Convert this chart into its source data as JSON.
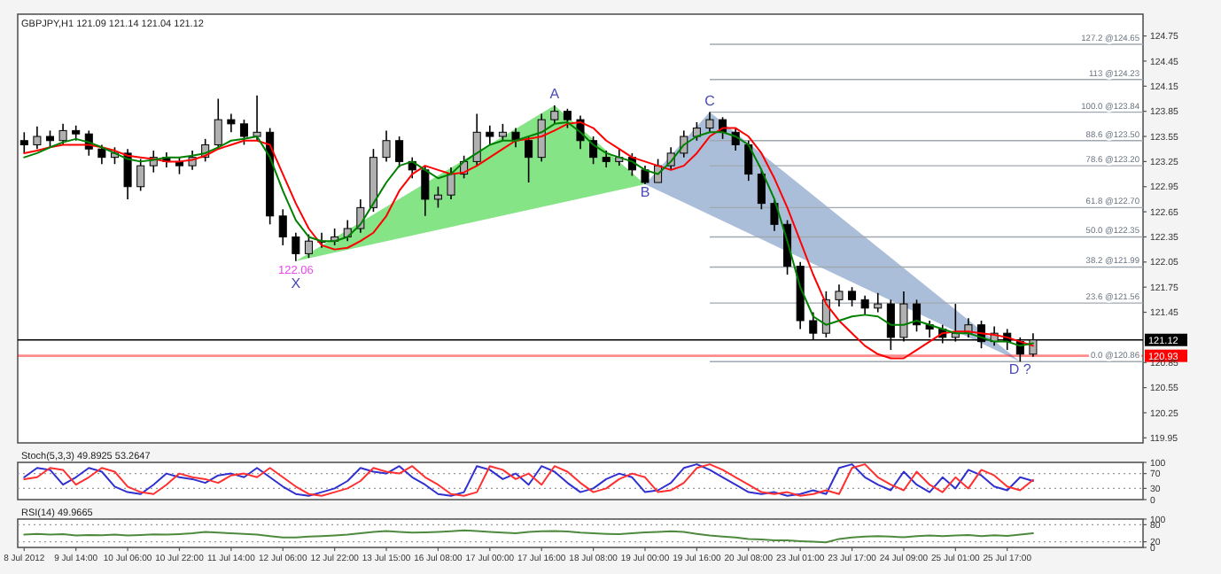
{
  "chart_data": [
    {
      "type": "candlestick",
      "title": "GBPJPY,H1 121.09 121.14 121.04 121.12",
      "color": "#000000",
      "categories": [
        null,
        null,
        null,
        null,
        null,
        null,
        null,
        null,
        null,
        null,
        null,
        null,
        null,
        null,
        null,
        null,
        null,
        null,
        null,
        null,
        null,
        null,
        null,
        null,
        null,
        null,
        null,
        null,
        null,
        null,
        null,
        null,
        null,
        null,
        null,
        null,
        null,
        null,
        null,
        null,
        null,
        null,
        null,
        null,
        null,
        null,
        null,
        null,
        null,
        null,
        null,
        null,
        null,
        null,
        null,
        null,
        null,
        null,
        null,
        null,
        null,
        null,
        null,
        null,
        null,
        null,
        null,
        null,
        null,
        null,
        null,
        null,
        null,
        null,
        null,
        null,
        null,
        null,
        null,
        null,
        null,
        null,
        null,
        null,
        null,
        null,
        null
      ],
      "ohlc": [
        [
          123.5,
          123.6,
          123.35,
          123.45
        ],
        [
          123.45,
          123.67,
          123.4,
          123.55
        ],
        [
          123.55,
          123.62,
          123.42,
          123.5
        ],
        [
          123.5,
          123.7,
          123.45,
          123.62
        ],
        [
          123.62,
          123.68,
          123.5,
          123.58
        ],
        [
          123.58,
          123.62,
          123.32,
          123.4
        ],
        [
          123.4,
          123.45,
          123.22,
          123.3
        ],
        [
          123.3,
          123.42,
          123.22,
          123.35
        ],
        [
          123.35,
          123.4,
          122.8,
          122.95
        ],
        [
          122.95,
          123.28,
          122.9,
          123.2
        ],
        [
          123.2,
          123.38,
          123.12,
          123.3
        ],
        [
          123.3,
          123.36,
          123.18,
          123.25
        ],
        [
          123.25,
          123.3,
          123.1,
          123.2
        ],
        [
          123.2,
          123.38,
          123.15,
          123.3
        ],
        [
          123.3,
          123.52,
          123.25,
          123.45
        ],
        [
          123.45,
          124.0,
          123.4,
          123.75
        ],
        [
          123.75,
          123.82,
          123.6,
          123.7
        ],
        [
          123.7,
          123.75,
          123.45,
          123.55
        ],
        [
          123.55,
          124.04,
          123.5,
          123.6
        ],
        [
          123.6,
          123.65,
          122.5,
          122.6
        ],
        [
          122.6,
          122.68,
          122.25,
          122.35
        ],
        [
          122.35,
          122.4,
          122.06,
          122.15
        ],
        [
          122.15,
          122.38,
          122.1,
          122.3
        ],
        [
          122.3,
          122.4,
          122.22,
          122.3
        ],
        [
          122.3,
          122.45,
          122.25,
          122.35
        ],
        [
          122.35,
          122.55,
          122.3,
          122.45
        ],
        [
          122.45,
          122.8,
          122.4,
          122.7
        ],
        [
          122.7,
          123.4,
          122.65,
          123.3
        ],
        [
          123.3,
          123.62,
          123.25,
          123.5
        ],
        [
          123.5,
          123.55,
          123.18,
          123.25
        ],
        [
          123.25,
          123.3,
          123.05,
          123.15
        ],
        [
          123.15,
          123.2,
          122.6,
          122.8
        ],
        [
          122.8,
          122.95,
          122.7,
          122.85
        ],
        [
          122.85,
          123.18,
          122.8,
          123.1
        ],
        [
          123.1,
          123.32,
          123.05,
          123.25
        ],
        [
          123.25,
          123.82,
          123.2,
          123.6
        ],
        [
          123.6,
          123.68,
          123.45,
          123.55
        ],
        [
          123.55,
          123.7,
          123.5,
          123.6
        ],
        [
          123.6,
          123.65,
          123.42,
          123.5
        ],
        [
          123.5,
          123.55,
          123.0,
          123.3
        ],
        [
          123.3,
          123.82,
          123.25,
          123.75
        ],
        [
          123.75,
          123.92,
          123.7,
          123.85
        ],
        [
          123.85,
          123.88,
          123.65,
          123.75
        ],
        [
          123.75,
          123.8,
          123.4,
          123.5
        ],
        [
          123.5,
          123.55,
          123.22,
          123.3
        ],
        [
          123.3,
          123.38,
          123.18,
          123.25
        ],
        [
          123.25,
          123.4,
          123.2,
          123.3
        ],
        [
          123.3,
          123.35,
          123.08,
          123.15
        ],
        [
          123.15,
          123.2,
          122.98,
          123.0
        ],
        [
          123.0,
          123.28,
          123.0,
          123.2
        ],
        [
          123.2,
          123.42,
          123.15,
          123.35
        ],
        [
          123.35,
          123.62,
          123.3,
          123.55
        ],
        [
          123.55,
          123.72,
          123.5,
          123.65
        ],
        [
          123.65,
          123.84,
          123.6,
          123.75
        ],
        [
          123.75,
          123.78,
          123.52,
          123.6
        ],
        [
          123.6,
          123.65,
          123.38,
          123.45
        ],
        [
          123.45,
          123.5,
          123.02,
          123.1
        ],
        [
          123.1,
          123.15,
          122.68,
          122.75
        ],
        [
          122.75,
          122.8,
          122.42,
          122.5
        ],
        [
          122.5,
          122.55,
          121.9,
          122.0
        ],
        [
          122.0,
          122.05,
          121.25,
          121.35
        ],
        [
          121.35,
          121.45,
          121.12,
          121.2
        ],
        [
          121.2,
          121.7,
          121.15,
          121.6
        ],
        [
          121.6,
          121.78,
          121.52,
          121.7
        ],
        [
          121.7,
          121.75,
          121.52,
          121.6
        ],
        [
          121.6,
          121.65,
          121.42,
          121.5
        ],
        [
          121.5,
          121.68,
          121.45,
          121.55
        ],
        [
          121.55,
          121.6,
          121.0,
          121.15
        ],
        [
          121.15,
          121.7,
          121.1,
          121.55
        ],
        [
          121.55,
          121.6,
          121.22,
          121.3
        ],
        [
          121.3,
          121.35,
          121.15,
          121.25
        ],
        [
          121.25,
          121.3,
          121.08,
          121.15
        ],
        [
          121.15,
          121.55,
          121.1,
          121.2
        ],
        [
          121.2,
          121.38,
          121.15,
          121.3
        ],
        [
          121.3,
          121.35,
          121.02,
          121.1
        ],
        [
          121.1,
          121.28,
          121.05,
          121.2
        ],
        [
          121.2,
          121.25,
          121.0,
          121.1
        ],
        [
          121.1,
          121.15,
          120.86,
          120.95
        ],
        [
          120.95,
          121.2,
          120.92,
          121.12
        ],
        null,
        null,
        null,
        null,
        null,
        null,
        null,
        null
      ],
      "series": [
        {
          "type": "line",
          "color": "#ff0000",
          "values": [
            123.35,
            123.38,
            123.42,
            123.45,
            123.45,
            123.45,
            123.42,
            123.38,
            123.32,
            123.3,
            123.28,
            123.25,
            123.25,
            123.27,
            123.32,
            123.4,
            123.45,
            123.5,
            123.5,
            123.45,
            123.1,
            122.75,
            122.45,
            122.25,
            122.2,
            122.22,
            122.3,
            122.4,
            122.6,
            122.9,
            123.1,
            123.2,
            123.15,
            123.1,
            123.12,
            123.2,
            123.3,
            123.4,
            123.5,
            123.52,
            123.55,
            123.62,
            123.7,
            123.72,
            123.65,
            123.5,
            123.4,
            123.3,
            123.25,
            123.2,
            123.15,
            123.2,
            123.35,
            123.55,
            123.65,
            123.65,
            123.55,
            123.35,
            123.05,
            122.7,
            122.3,
            121.9,
            121.55,
            121.35,
            121.2,
            121.05,
            120.95,
            120.9,
            120.9,
            121.0,
            121.1,
            121.2,
            121.22,
            121.22,
            121.2,
            121.18,
            121.15,
            121.1,
            121.05,
            null,
            null,
            null,
            null,
            null,
            null,
            null,
            null
          ]
        },
        {
          "type": "line",
          "color": "#008000",
          "values": [
            123.3,
            123.35,
            123.42,
            123.48,
            123.52,
            123.48,
            123.42,
            123.35,
            123.28,
            123.25,
            123.27,
            123.3,
            123.3,
            123.32,
            123.35,
            123.42,
            123.5,
            123.52,
            123.55,
            123.3,
            122.9,
            122.55,
            122.35,
            122.3,
            122.3,
            122.35,
            122.5,
            122.75,
            123.0,
            123.2,
            123.25,
            123.15,
            123.05,
            123.1,
            123.25,
            123.35,
            123.45,
            123.5,
            123.5,
            123.55,
            123.6,
            123.7,
            123.72,
            123.6,
            123.45,
            123.35,
            123.3,
            123.25,
            123.15,
            123.1,
            123.25,
            123.45,
            123.55,
            123.6,
            123.6,
            123.55,
            123.45,
            123.15,
            122.8,
            122.3,
            121.75,
            121.4,
            121.3,
            121.35,
            121.4,
            121.42,
            121.4,
            121.3,
            121.3,
            121.35,
            121.3,
            121.25,
            121.2,
            121.2,
            121.15,
            121.1,
            121.1,
            121.05,
            121.08,
            null,
            null,
            null,
            null,
            null,
            null,
            null,
            null
          ]
        }
      ],
      "annotations": [
        {
          "text": "122.06",
          "y": 122.06
        },
        {
          "text": "X",
          "y": 122.06
        },
        {
          "text": "A",
          "y": 123.92
        },
        {
          "text": "B",
          "y": 122.98
        },
        {
          "text": "C",
          "y": 123.84
        },
        {
          "text": "D ?",
          "y": 120.86
        }
      ],
      "ref_lines": [
        {
          "axis": "y",
          "value": 124.65,
          "label": "127.2 @124.65",
          "color": "#a0a8b0"
        },
        {
          "axis": "y",
          "value": 124.23,
          "label": "113 @124.23",
          "color": "#a0a8b0"
        },
        {
          "axis": "y",
          "value": 123.84,
          "label": "100.0 @123.84",
          "color": "#a0a8b0"
        },
        {
          "axis": "y",
          "value": 123.5,
          "label": "88.6 @123.50",
          "color": "#a0a8b0"
        },
        {
          "axis": "y",
          "value": 123.2,
          "label": "78.6 @123.20",
          "color": "#a0a8b0"
        },
        {
          "axis": "y",
          "value": 122.7,
          "label": "61.8 @122.70",
          "color": "#a0a8b0"
        },
        {
          "axis": "y",
          "value": 122.35,
          "label": "50.0 @122.35",
          "color": "#a0a8b0"
        },
        {
          "axis": "y",
          "value": 121.99,
          "label": "38.2 @121.99",
          "color": "#a0a8b0"
        },
        {
          "axis": "y",
          "value": 121.56,
          "label": "23.6 @121.56",
          "color": "#a0a8b0"
        },
        {
          "axis": "y",
          "value": 120.86,
          "label": "0.0 @120.86",
          "color": "#a0a8b0"
        },
        {
          "axis": "y",
          "value": 121.12,
          "label": "121.12",
          "color": "#000000",
          "line_style": "solid"
        },
        {
          "axis": "y",
          "value": 120.93,
          "label": "120.93",
          "color": "#ff0000",
          "line_style": "solid"
        }
      ],
      "ylim": [
        119.89,
        125.01
      ],
      "yticks": [
        124.75,
        124.45,
        124.15,
        123.85,
        123.55,
        123.25,
        122.95,
        122.65,
        122.35,
        122.05,
        121.75,
        121.45,
        120.85,
        120.55,
        120.25,
        119.95
      ],
      "tick_labels": "y"
    },
    {
      "type": "line",
      "title": "Stoch(5,3,3) 49.8925 53.2647",
      "categories": [
        null,
        null,
        null,
        null,
        null,
        null,
        null,
        null,
        null,
        null,
        null,
        null,
        null,
        null,
        null,
        null,
        null,
        null,
        null,
        null,
        null,
        null,
        null,
        null,
        null,
        null,
        null,
        null,
        null,
        null,
        null,
        null,
        null,
        null,
        null,
        null,
        null,
        null,
        null,
        null,
        null,
        null,
        null,
        null,
        null,
        null,
        null,
        null,
        null,
        null,
        null,
        null,
        null,
        null,
        null,
        null,
        null,
        null,
        null,
        null,
        null,
        null,
        null,
        null,
        null,
        null,
        null,
        null,
        null,
        null,
        null,
        null,
        null,
        null,
        null,
        null,
        null,
        null,
        null,
        null,
        null,
        null,
        null,
        null,
        null,
        null,
        null
      ],
      "series": [
        {
          "color": "#3030d0",
          "values": [
            60,
            85,
            80,
            40,
            60,
            85,
            75,
            35,
            20,
            15,
            40,
            70,
            60,
            55,
            45,
            65,
            70,
            60,
            85,
            60,
            35,
            15,
            10,
            20,
            30,
            50,
            85,
            75,
            70,
            90,
            60,
            40,
            15,
            10,
            20,
            90,
            80,
            55,
            70,
            40,
            90,
            75,
            45,
            20,
            30,
            55,
            70,
            60,
            20,
            25,
            45,
            85,
            95,
            80,
            60,
            40,
            20,
            15,
            20,
            10,
            15,
            25,
            15,
            85,
            95,
            60,
            40,
            25,
            75,
            40,
            20,
            60,
            30,
            80,
            65,
            35,
            25,
            60,
            50,
            null,
            null,
            null,
            null,
            null,
            null,
            null,
            null
          ]
        },
        {
          "color": "#ff3030",
          "values": [
            55,
            60,
            85,
            80,
            40,
            60,
            85,
            75,
            35,
            20,
            15,
            40,
            70,
            60,
            55,
            45,
            65,
            70,
            60,
            85,
            60,
            35,
            15,
            10,
            20,
            30,
            50,
            85,
            75,
            70,
            90,
            60,
            40,
            15,
            10,
            20,
            90,
            80,
            55,
            70,
            40,
            90,
            75,
            45,
            20,
            30,
            55,
            70,
            60,
            20,
            25,
            45,
            85,
            95,
            80,
            60,
            40,
            20,
            15,
            20,
            10,
            15,
            25,
            15,
            85,
            95,
            60,
            40,
            25,
            75,
            40,
            20,
            60,
            30,
            80,
            65,
            35,
            25,
            53,
            null,
            null,
            null,
            null,
            null,
            null,
            null,
            null
          ]
        }
      ],
      "ref_lines": [
        {
          "axis": "y",
          "value": 70,
          "color": "#999999",
          "line_style": "dotted"
        },
        {
          "axis": "y",
          "value": 30,
          "color": "#999999",
          "line_style": "dotted"
        }
      ],
      "ylim": [
        0,
        100
      ],
      "yticks": [
        100,
        70,
        30,
        0
      ],
      "tick_labels": "y"
    },
    {
      "type": "line",
      "title": "RSI(14) 49.9665",
      "categories": [
        "8 Jul 2012",
        null,
        null,
        null,
        "9 Jul 14:00",
        null,
        null,
        null,
        "10 Jul 06:00",
        null,
        null,
        null,
        "10 Jul 22:00",
        null,
        null,
        null,
        "11 Jul 14:00",
        null,
        null,
        null,
        "12 Jul 06:00",
        null,
        null,
        null,
        "12 Jul 22:00",
        null,
        null,
        null,
        "13 Jul 15:00",
        null,
        null,
        null,
        "16 Jul 08:00",
        null,
        null,
        null,
        "17 Jul 00:00",
        null,
        null,
        null,
        "17 Jul 16:00",
        null,
        null,
        null,
        "18 Jul 08:00",
        null,
        null,
        null,
        "19 Jul 00:00",
        null,
        null,
        null,
        "19 Jul 16:00",
        null,
        null,
        null,
        "20 Jul 08:00",
        null,
        null,
        null,
        "23 Jul 01:00",
        null,
        null,
        null,
        "23 Jul 17:00",
        null,
        null,
        null,
        "24 Jul 09:00",
        null,
        null,
        null,
        "25 Jul 01:00",
        null,
        null,
        null,
        "25 Jul 17:00",
        null,
        null,
        null,
        null,
        null,
        null,
        null,
        null,
        null,
        null
      ],
      "series": [
        {
          "color": "#4e8a3e",
          "values": [
            45,
            48,
            45,
            47,
            42,
            44,
            43,
            45,
            42,
            44,
            46,
            45,
            47,
            50,
            55,
            52,
            50,
            48,
            45,
            40,
            35,
            35,
            38,
            40,
            42,
            45,
            50,
            55,
            58,
            55,
            52,
            53,
            55,
            57,
            60,
            58,
            55,
            52,
            50,
            55,
            57,
            58,
            56,
            52,
            50,
            48,
            47,
            50,
            53,
            55,
            57,
            55,
            48,
            42,
            38,
            35,
            30,
            28,
            25,
            25,
            22,
            20,
            18,
            30,
            35,
            38,
            40,
            38,
            36,
            40,
            42,
            40,
            42,
            44,
            40,
            43,
            41,
            45,
            50,
            null,
            null,
            null,
            null,
            null,
            null,
            null,
            null
          ]
        }
      ],
      "ref_lines": [
        {
          "axis": "y",
          "value": 80,
          "color": "#999999",
          "line_style": "dotted"
        },
        {
          "axis": "y",
          "value": 20,
          "color": "#999999",
          "line_style": "dotted"
        }
      ],
      "ylim": [
        0,
        100
      ],
      "yticks": [
        100,
        80,
        20,
        0
      ]
    }
  ]
}
